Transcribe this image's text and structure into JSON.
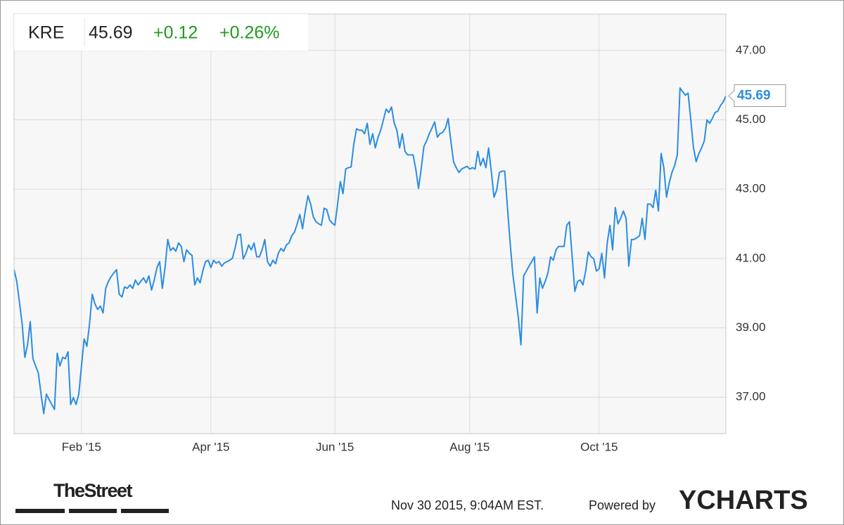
{
  "chart_data": {
    "type": "line",
    "header": {
      "ticker": "KRE",
      "price": "45.69",
      "change": "+0.12",
      "change_pct": "+0.26%"
    },
    "footer": {
      "brand": "TheStreet",
      "timestamp": "Nov 30 2015, 9:04AM EST.",
      "powered": "Powered by",
      "provider": "YCHARTS"
    },
    "xlim": [
      0,
      264
    ],
    "xticks": [
      {
        "value": 25,
        "label": "Feb '15"
      },
      {
        "value": 73,
        "label": "Apr '15"
      },
      {
        "value": 119,
        "label": "Jun '15"
      },
      {
        "value": 169,
        "label": "Aug '15"
      },
      {
        "value": 217,
        "label": "Oct '15"
      }
    ],
    "ylim": [
      35.95,
      48.05
    ],
    "yticks": [
      {
        "value": 37,
        "label": "37.00"
      },
      {
        "value": 39,
        "label": "39.00"
      },
      {
        "value": 41,
        "label": "41.00"
      },
      {
        "value": 43,
        "label": "43.00"
      },
      {
        "value": 45,
        "label": "45.00"
      },
      {
        "value": 47,
        "label": "47.00"
      }
    ],
    "grid": true,
    "series": [
      {
        "color": "#2b8de3",
        "values": [
          40.68,
          40.34,
          39.73,
          39.12,
          38.15,
          38.51,
          39.18,
          38.11,
          37.9,
          37.7,
          37.09,
          36.53,
          37.09,
          36.93,
          36.79,
          36.65,
          38.27,
          37.9,
          38.15,
          38.11,
          38.31,
          36.79,
          36.99,
          36.79,
          37.09,
          37.9,
          38.68,
          38.47,
          39.12,
          39.97,
          39.69,
          39.53,
          39.63,
          39.43,
          40.14,
          40.34,
          40.48,
          40.58,
          40.68,
          39.97,
          39.89,
          40.18,
          40.14,
          40.24,
          40.14,
          40.38,
          40.24,
          40.34,
          40.44,
          40.3,
          40.5,
          40.09,
          40.38,
          40.74,
          40.91,
          40.14,
          40.74,
          41.55,
          41.23,
          41.31,
          41.21,
          41.45,
          41.35,
          40.91,
          41.25,
          41.15,
          41.09,
          40.24,
          40.44,
          40.3,
          40.64,
          40.91,
          40.95,
          40.74,
          40.95,
          40.87,
          40.91,
          40.78,
          40.87,
          40.91,
          40.95,
          41.01,
          41.31,
          41.68,
          41.7,
          40.99,
          41.15,
          41.39,
          41.25,
          41.45,
          41.05,
          41.05,
          41.25,
          41.55,
          40.91,
          40.78,
          40.95,
          40.85,
          41.15,
          41.29,
          41.21,
          41.39,
          41.45,
          41.66,
          41.76,
          42.0,
          42.27,
          41.86,
          42.37,
          42.81,
          42.57,
          42.2,
          42.06,
          42.0,
          41.96,
          42.45,
          42.41,
          42.12,
          42.02,
          41.96,
          42.57,
          43.22,
          42.87,
          43.58,
          43.62,
          43.64,
          44.29,
          44.74,
          44.7,
          44.7,
          44.6,
          44.9,
          44.29,
          44.6,
          44.19,
          44.5,
          44.7,
          45.0,
          45.31,
          45.21,
          45.37,
          44.9,
          44.7,
          44.19,
          44.6,
          44.09,
          43.99,
          43.99,
          43.99,
          43.58,
          43.02,
          43.58,
          44.23,
          44.39,
          44.6,
          44.76,
          44.94,
          44.5,
          44.6,
          44.64,
          44.76,
          45.04,
          44.39,
          43.79,
          43.62,
          43.48,
          43.58,
          43.62,
          43.66,
          43.58,
          43.62,
          43.58,
          44.09,
          43.68,
          43.89,
          43.62,
          44.19,
          43.52,
          42.77,
          42.97,
          43.48,
          43.52,
          43.52,
          42.47,
          41.45,
          40.54,
          39.93,
          39.32,
          38.51,
          40.5,
          40.64,
          40.78,
          40.91,
          41.05,
          39.43,
          40.44,
          40.14,
          40.34,
          40.58,
          41.05,
          40.95,
          41.25,
          41.35,
          41.35,
          41.35,
          41.96,
          42.06,
          41.05,
          40.05,
          40.34,
          40.38,
          40.24,
          40.64,
          41.19,
          41.05,
          40.99,
          40.64,
          40.7,
          41.15,
          40.44,
          41.45,
          41.96,
          41.25,
          42.47,
          42.0,
          42.16,
          42.37,
          42.16,
          40.78,
          41.55,
          41.55,
          41.6,
          41.66,
          42.16,
          41.55,
          42.57,
          42.57,
          42.47,
          42.97,
          42.37,
          44.03,
          43.62,
          42.77,
          43.18,
          43.48,
          43.68,
          43.99,
          45.92,
          45.81,
          45.71,
          45.77,
          45.0,
          44.19,
          43.79,
          44.03,
          44.19,
          44.39,
          45.0,
          44.9,
          45.04,
          45.21,
          45.25,
          45.41,
          45.51,
          45.69
        ]
      }
    ]
  }
}
